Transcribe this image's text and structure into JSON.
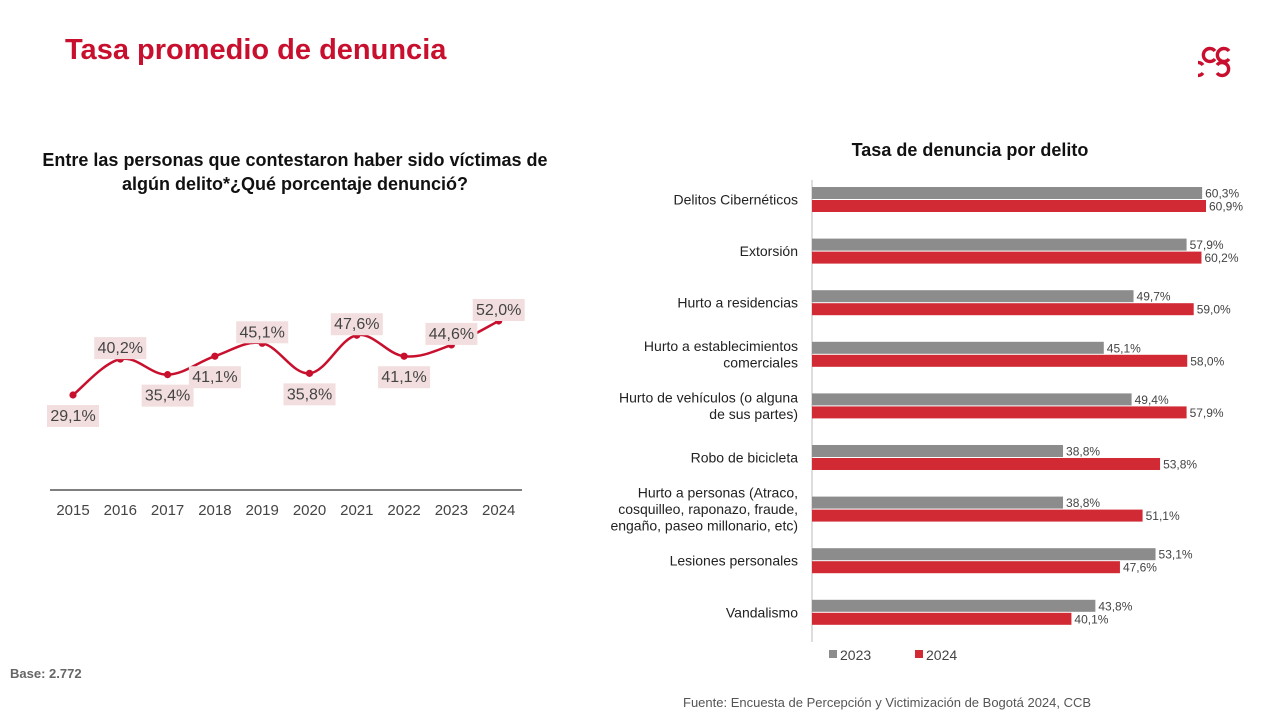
{
  "page": {
    "title": "Tasa promedio de denuncia",
    "base_label": "Base: 2.772",
    "source": "Fuente: Encuesta de Percepción y Victimización de Bogotá 2024, CCB"
  },
  "colors": {
    "accent": "#c8102e",
    "series_2023": "#8c8c8c",
    "series_2024": "#d22a35",
    "label_bg": "#f2dede"
  },
  "chart_data": [
    {
      "type": "line",
      "title": "Entre las personas que contestaron haber sido víctimas de algún delito*¿Qué porcentaje denunció?",
      "x": [
        "2015",
        "2016",
        "2017",
        "2018",
        "2019",
        "2020",
        "2021",
        "2022",
        "2023",
        "2024"
      ],
      "values": [
        29.1,
        40.2,
        35.4,
        41.1,
        45.1,
        35.8,
        47.6,
        41.1,
        44.6,
        52.0
      ],
      "labels": [
        "29,1%",
        "40,2%",
        "35,4%",
        "41,1%",
        "45,1%",
        "35,8%",
        "47,6%",
        "41,1%",
        "44,6%",
        "52,0%"
      ],
      "label_positions": [
        "below",
        "above",
        "below",
        "below",
        "above",
        "below",
        "above",
        "below",
        "above",
        "above"
      ],
      "ylim": [
        0,
        60
      ],
      "xlabel": "",
      "ylabel": ""
    },
    {
      "type": "bar",
      "orientation": "horizontal",
      "title": "Tasa de denuncia por delito",
      "categories": [
        [
          "Delitos Cibernéticos"
        ],
        [
          "Extorsión"
        ],
        [
          "Hurto a residencias"
        ],
        [
          "Hurto a establecimientos",
          "comerciales"
        ],
        [
          "Hurto de vehículos (o alguna",
          "de sus partes)"
        ],
        [
          "Robo de bicicleta"
        ],
        [
          "Hurto a personas (Atraco,",
          "cosquilleo, raponazo, fraude,",
          "engaño, paseo millonario, etc)"
        ],
        [
          "Lesiones personales"
        ],
        [
          "Vandalismo"
        ]
      ],
      "series": [
        {
          "name": "2023",
          "values": [
            60.3,
            57.9,
            49.7,
            45.1,
            49.4,
            38.8,
            38.8,
            53.1,
            43.8
          ],
          "labels": [
            "60,3%",
            "57,9%",
            "49,7%",
            "45,1%",
            "49,4%",
            "38,8%",
            "38,8%",
            "53,1%",
            "43,8%"
          ]
        },
        {
          "name": "2024",
          "values": [
            60.9,
            60.2,
            59.0,
            58.0,
            57.9,
            53.8,
            51.1,
            47.6,
            40.1
          ],
          "labels": [
            "60,9%",
            "60,2%",
            "59,0%",
            "58,0%",
            "57,9%",
            "53,8%",
            "51,1%",
            "47,6%",
            "40,1%"
          ]
        }
      ],
      "xlim": [
        0,
        60.9
      ],
      "legend": "bottom"
    }
  ]
}
